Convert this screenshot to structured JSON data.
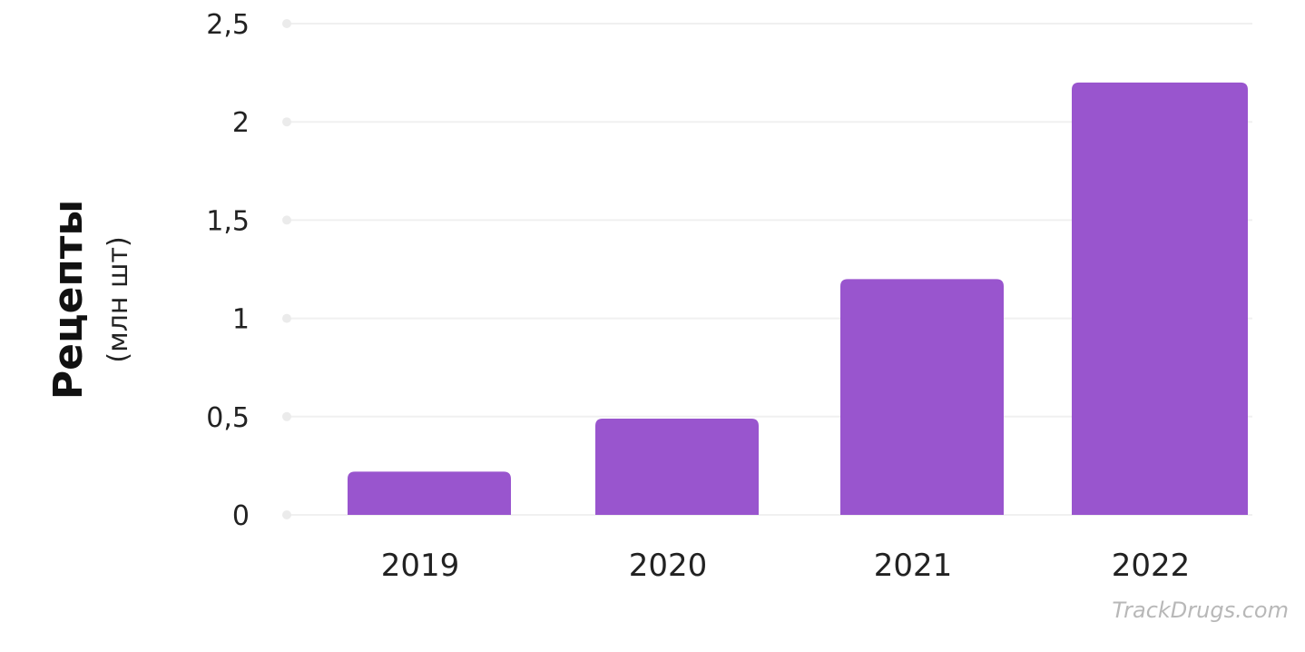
{
  "chart_data": {
    "type": "bar",
    "categories": [
      "2019",
      "2020",
      "2021",
      "2022"
    ],
    "values": [
      0.22,
      0.49,
      1.2,
      2.2
    ],
    "y_ticks": [
      "0",
      "0,5",
      "1",
      "1,5",
      "2",
      "2,5"
    ],
    "y_tick_values": [
      0,
      0.5,
      1,
      1.5,
      2,
      2.5
    ],
    "ylim": [
      0,
      2.5
    ],
    "ylabel": "Рецепты",
    "ylabel_unit": "(млн шт)",
    "grid": true,
    "bar_color": "#9955CE",
    "grid_color": "#F0F0F0"
  },
  "watermark": "TrackDrugs.com"
}
